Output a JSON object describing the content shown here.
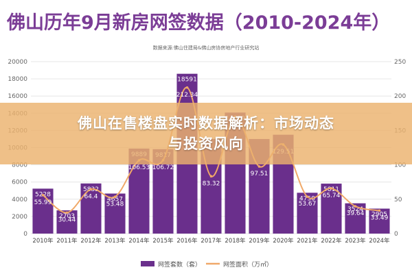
{
  "chart_data": {
    "type": "bar",
    "title": "佛山历年9月新房网签数据（2010-2024年）",
    "subtitle": "数据来源:佛山住建局&佛山房协房地产行业研究站",
    "categories": [
      "2010年",
      "2011年",
      "2012年",
      "2013年",
      "2014年",
      "2015年",
      "2016年",
      "2017年",
      "2018年",
      "2019年",
      "2020年",
      "2021年",
      "2022年",
      "2023年",
      "2024年"
    ],
    "left_axis": {
      "ticks": [
        "0",
        "2000",
        "4000",
        "6000",
        "8000",
        "10000",
        "12000",
        "14000",
        "16000",
        "18000",
        "20000"
      ],
      "ylim": [
        0,
        20000
      ]
    },
    "right_axis": {
      "ticks": [
        "0",
        "50",
        "100",
        "150",
        "200",
        "250"
      ],
      "ylim": [
        0,
        250
      ]
    },
    "series": [
      {
        "name": "网签套数（套）",
        "type": "bar",
        "axis": "left",
        "values": [
          5228,
          2703,
          5832,
          4657,
          9889,
          9817,
          18591,
          11000,
          14079,
          11000,
          11500,
          4750,
          5811,
          3524,
          2905
        ],
        "labels": [
          "5228",
          "2703",
          "5832",
          "4657",
          "9889",
          "9817",
          "18591",
          "",
          "14079",
          "",
          "",
          "4750",
          "5811",
          "3524",
          "2905"
        ]
      },
      {
        "name": "网签面积（万㎡）",
        "type": "line",
        "axis": "right",
        "values": [
          55.99,
          30.44,
          64.4,
          53.48,
          106.53,
          106.72,
          212.34,
          83.32,
          170,
          97.51,
          129.51,
          53.67,
          65.74,
          39.64,
          33.49
        ],
        "labels": [
          "55.99",
          "30.44",
          "64.4",
          "53.48",
          "106.53",
          "106.72",
          "212.34",
          "83.32",
          "",
          "97.51",
          "129.51",
          "53.67",
          "65.74",
          "39.64",
          "33.49"
        ]
      }
    ],
    "grid": true,
    "legend_position": "bottom",
    "colors": {
      "bar": "#6a2f8c",
      "line": "#f0a868",
      "banner": "#ecb26e"
    }
  },
  "overlay": {
    "line1": "佛山在售楼盘实时数据解析：市场动态",
    "line2": "与投资风向"
  }
}
